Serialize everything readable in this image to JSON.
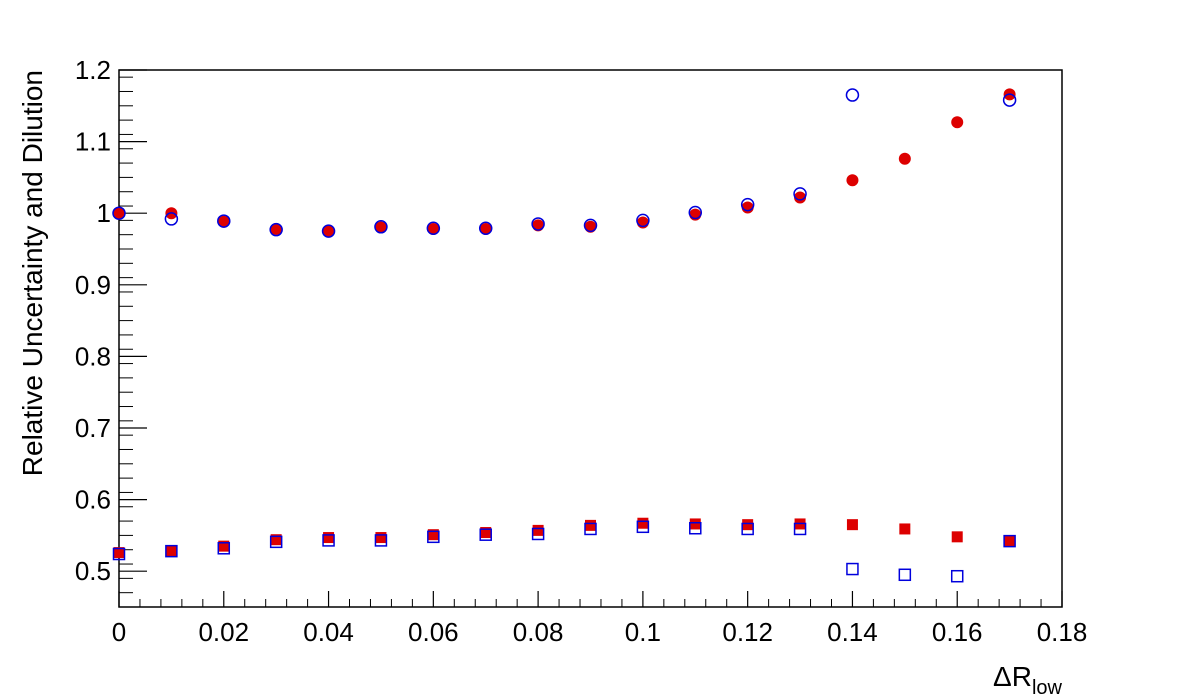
{
  "chart_data": {
    "type": "scatter",
    "title": "",
    "xlabel": {
      "main": "ΔR",
      "sub": "low"
    },
    "ylabel": "Relative Uncertainty and Dilution",
    "xlim": [
      0,
      0.18
    ],
    "ylim": [
      0.45,
      1.2
    ],
    "grid": false,
    "x_ticks": [
      0,
      0.02,
      0.04,
      0.06,
      0.08,
      0.1,
      0.12,
      0.14,
      0.16,
      0.18
    ],
    "x_tick_labels": [
      "0",
      "0.02",
      "0.04",
      "0.06",
      "0.08",
      "0.1",
      "0.12",
      "0.14",
      "0.16",
      "0.18"
    ],
    "y_ticks": [
      0.5,
      0.6,
      0.7,
      0.8,
      0.9,
      1,
      1.1,
      1.2
    ],
    "y_tick_labels": [
      "0.5",
      "0.6",
      "0.7",
      "0.8",
      "0.9",
      "1",
      "1.1",
      "1.2"
    ],
    "colors": {
      "red": "#dd0000",
      "blue": "#0000dd"
    },
    "series": [
      {
        "marker": "filled-circle",
        "color": "#dd0000",
        "points": [
          [
            0,
            1.0
          ],
          [
            0.01,
            1.0
          ],
          [
            0.02,
            0.988
          ],
          [
            0.03,
            0.978
          ],
          [
            0.04,
            0.975
          ],
          [
            0.05,
            0.98
          ],
          [
            0.06,
            0.978
          ],
          [
            0.07,
            0.978
          ],
          [
            0.08,
            0.983
          ],
          [
            0.09,
            0.981
          ],
          [
            0.1,
            0.987
          ],
          [
            0.11,
            0.998
          ],
          [
            0.12,
            1.008
          ],
          [
            0.13,
            1.022
          ],
          [
            0.14,
            1.046
          ],
          [
            0.15,
            1.076
          ],
          [
            0.16,
            1.127
          ],
          [
            0.17,
            1.166
          ]
        ]
      },
      {
        "marker": "open-circle",
        "color": "#0000dd",
        "points": [
          [
            0,
            1.0
          ],
          [
            0.01,
            0.992
          ],
          [
            0.02,
            0.989
          ],
          [
            0.03,
            0.977
          ],
          [
            0.04,
            0.975
          ],
          [
            0.05,
            0.981
          ],
          [
            0.06,
            0.979
          ],
          [
            0.07,
            0.979
          ],
          [
            0.08,
            0.985
          ],
          [
            0.09,
            0.983
          ],
          [
            0.1,
            0.99
          ],
          [
            0.11,
            1.001
          ],
          [
            0.12,
            1.012
          ],
          [
            0.13,
            1.027
          ],
          [
            0.14,
            1.165
          ],
          [
            0.17,
            1.158
          ]
        ]
      },
      {
        "marker": "filled-square",
        "color": "#dd0000",
        "points": [
          [
            0,
            0.526
          ],
          [
            0.01,
            0.528
          ],
          [
            0.02,
            0.535
          ],
          [
            0.03,
            0.544
          ],
          [
            0.04,
            0.547
          ],
          [
            0.05,
            0.547
          ],
          [
            0.06,
            0.551
          ],
          [
            0.07,
            0.554
          ],
          [
            0.08,
            0.557
          ],
          [
            0.09,
            0.564
          ],
          [
            0.1,
            0.567
          ],
          [
            0.11,
            0.566
          ],
          [
            0.12,
            0.565
          ],
          [
            0.13,
            0.566
          ],
          [
            0.14,
            0.565
          ],
          [
            0.15,
            0.559
          ],
          [
            0.16,
            0.548
          ],
          [
            0.17,
            0.542
          ]
        ]
      },
      {
        "marker": "open-square",
        "color": "#0000dd",
        "points": [
          [
            0,
            0.524
          ],
          [
            0.01,
            0.528
          ],
          [
            0.02,
            0.532
          ],
          [
            0.03,
            0.541
          ],
          [
            0.04,
            0.543
          ],
          [
            0.05,
            0.543
          ],
          [
            0.06,
            0.548
          ],
          [
            0.07,
            0.551
          ],
          [
            0.08,
            0.552
          ],
          [
            0.09,
            0.559
          ],
          [
            0.1,
            0.562
          ],
          [
            0.11,
            0.56
          ],
          [
            0.12,
            0.559
          ],
          [
            0.13,
            0.559
          ],
          [
            0.14,
            0.503
          ],
          [
            0.15,
            0.495
          ],
          [
            0.16,
            0.493
          ],
          [
            0.17,
            0.542
          ]
        ]
      }
    ]
  }
}
